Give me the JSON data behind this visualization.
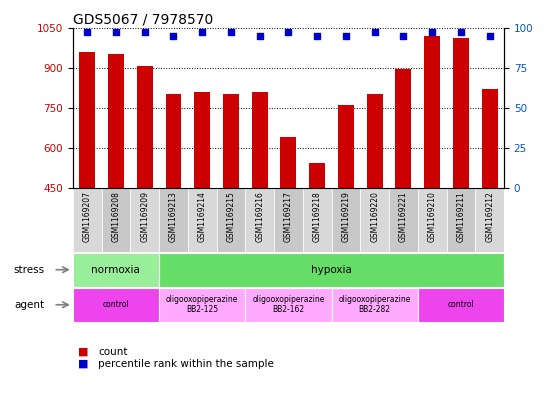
{
  "title": "GDS5067 / 7978570",
  "samples": [
    "GSM1169207",
    "GSM1169208",
    "GSM1169209",
    "GSM1169213",
    "GSM1169214",
    "GSM1169215",
    "GSM1169216",
    "GSM1169217",
    "GSM1169218",
    "GSM1169219",
    "GSM1169220",
    "GSM1169221",
    "GSM1169210",
    "GSM1169211",
    "GSM1169212"
  ],
  "counts": [
    960,
    950,
    905,
    800,
    810,
    800,
    810,
    640,
    545,
    760,
    800,
    895,
    1020,
    1010,
    820
  ],
  "percentiles": [
    97,
    97,
    97,
    95,
    97,
    97,
    95,
    97,
    95,
    95,
    97,
    95,
    97,
    97,
    95
  ],
  "ylim_left": [
    450,
    1050
  ],
  "ylim_right": [
    0,
    100
  ],
  "yticks_left": [
    450,
    600,
    750,
    900,
    1050
  ],
  "yticks_right": [
    0,
    25,
    50,
    75,
    100
  ],
  "bar_color": "#cc0000",
  "dot_color": "#0000cc",
  "stress_labels": [
    {
      "text": "normoxia",
      "start": 0,
      "end": 3,
      "color": "#99ee99"
    },
    {
      "text": "hypoxia",
      "start": 3,
      "end": 15,
      "color": "#66dd66"
    }
  ],
  "agent_labels": [
    {
      "text": "control",
      "start": 0,
      "end": 3,
      "color": "#ee44ee"
    },
    {
      "text": "oligooxopiperazine\nBB2-125",
      "start": 3,
      "end": 6,
      "color": "#ffaaff"
    },
    {
      "text": "oligooxopiperazine\nBB2-162",
      "start": 6,
      "end": 9,
      "color": "#ffaaff"
    },
    {
      "text": "oligooxopiperazine\nBB2-282",
      "start": 9,
      "end": 12,
      "color": "#ffaaff"
    },
    {
      "text": "control",
      "start": 12,
      "end": 15,
      "color": "#ee44ee"
    }
  ],
  "legend_count_color": "#cc0000",
  "legend_pct_color": "#0000cc",
  "legend_count_label": "count",
  "legend_pct_label": "percentile rank within the sample",
  "stress_label": "stress",
  "agent_label": "agent",
  "xtick_bg": "#d8d8d8",
  "xtick_bg_alt": "#c8c8c8"
}
